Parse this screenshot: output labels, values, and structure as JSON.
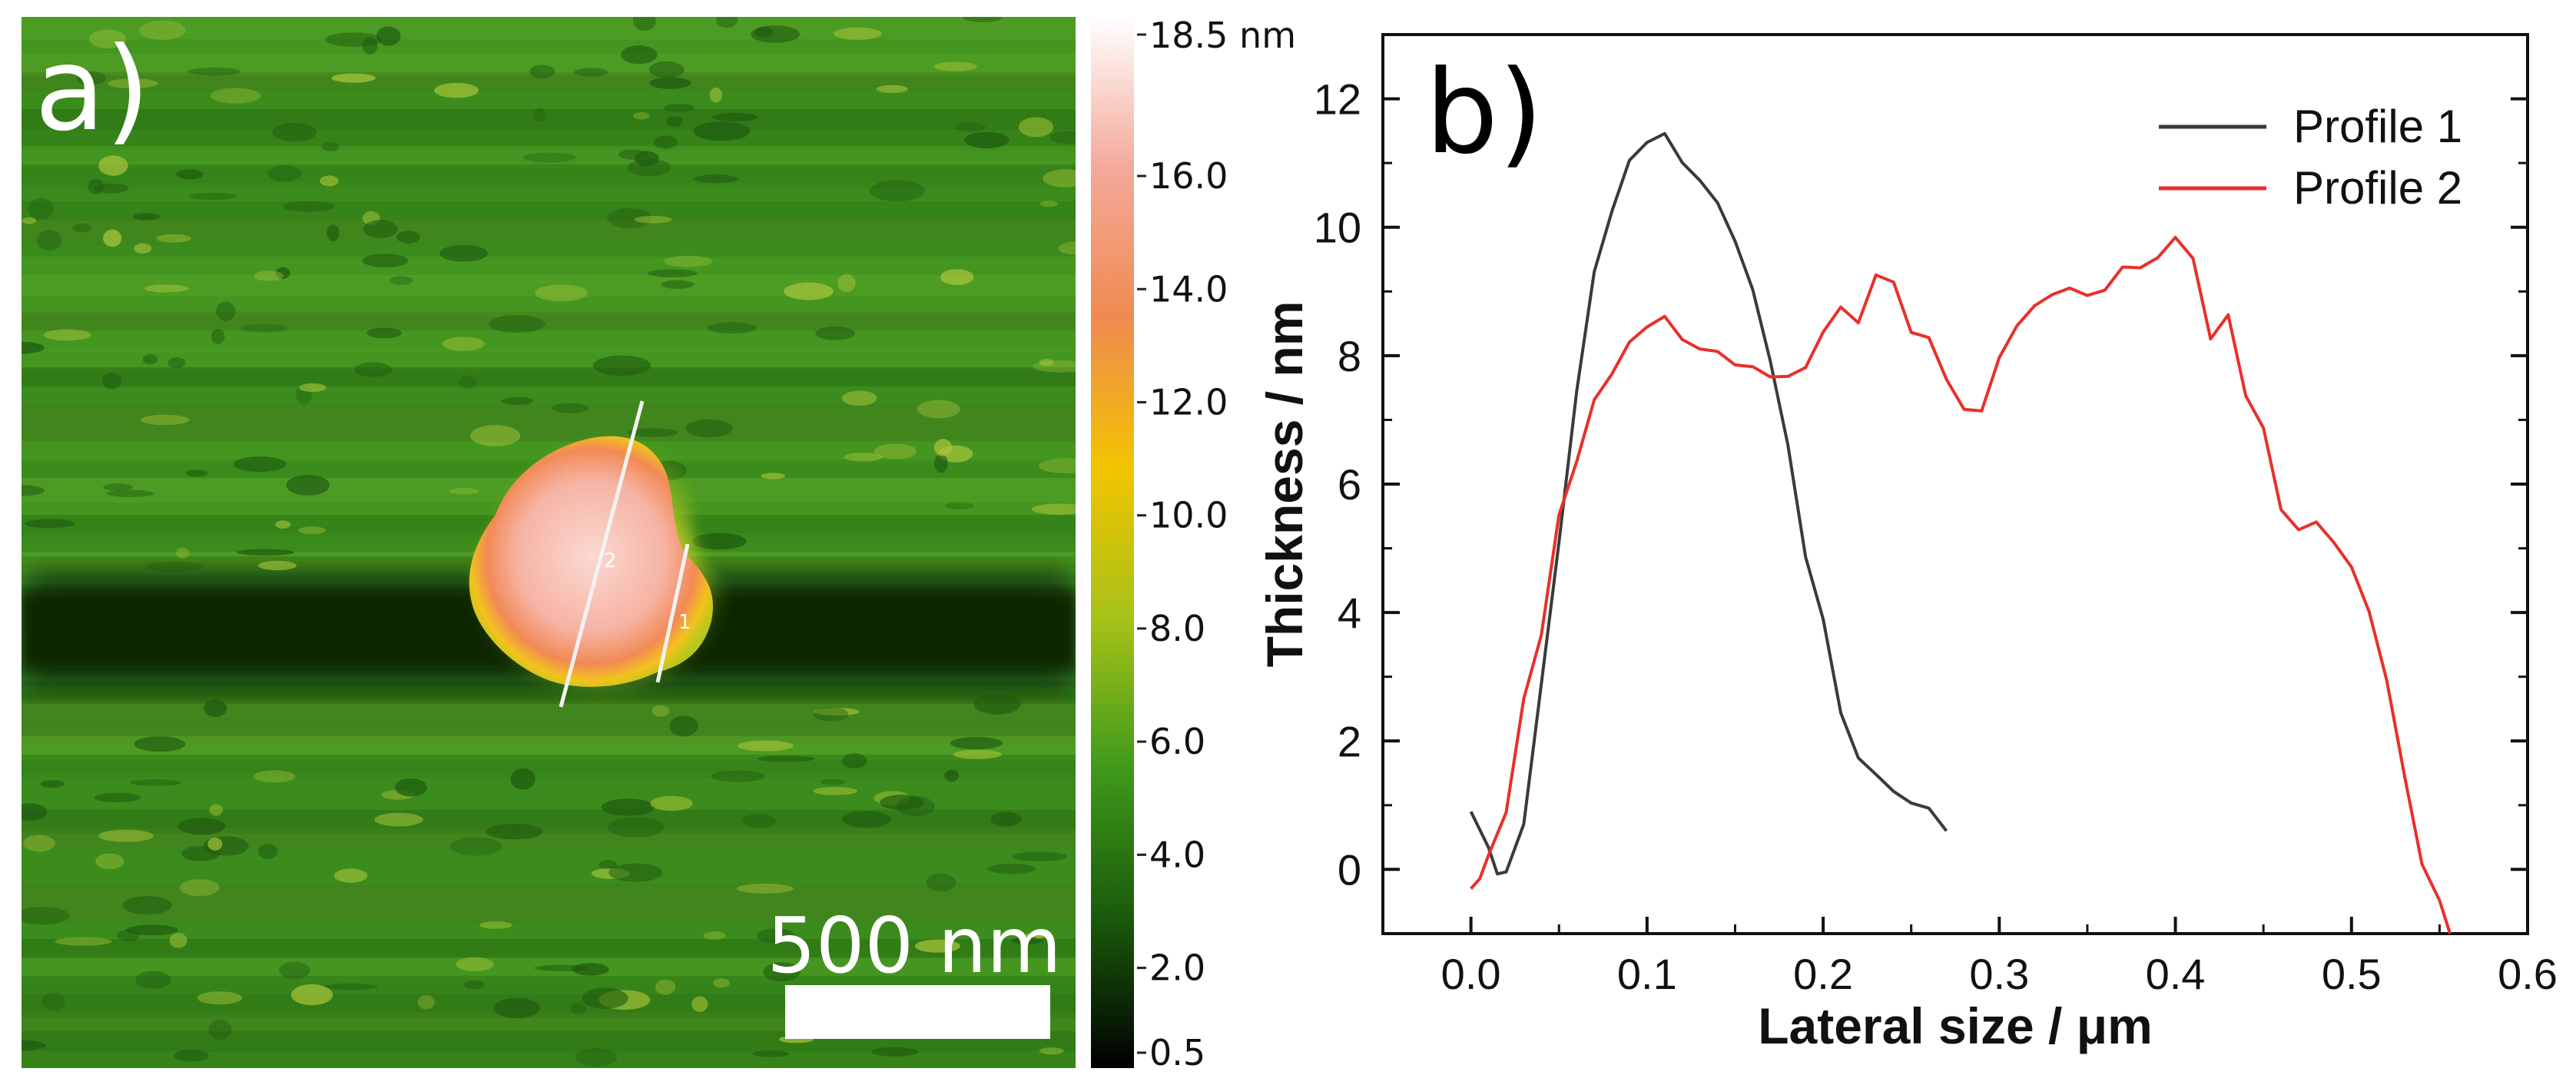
{
  "afm_panel": {
    "panel_label": "a)",
    "scale_bar_label": "500 nm",
    "profile_line_labels": [
      "2",
      "1"
    ],
    "colorbar": {
      "top_label": "18.5 nm",
      "ticks": [
        {
          "value": 16.0,
          "label": "16.0"
        },
        {
          "value": 14.0,
          "label": "14.0"
        },
        {
          "value": 12.0,
          "label": "12.0"
        },
        {
          "value": 10.0,
          "label": "10.0"
        },
        {
          "value": 8.0,
          "label": "8.0"
        },
        {
          "value": 6.0,
          "label": "6.0"
        },
        {
          "value": 4.0,
          "label": "4.0"
        },
        {
          "value": 2.0,
          "label": "2.0"
        },
        {
          "value": 0.5,
          "label": "0.5"
        }
      ],
      "range": [
        0.5,
        18.5
      ],
      "colors": [
        "#000000",
        "#1a5a0c",
        "#3f9a1a",
        "#a8c218",
        "#f2c400",
        "#f08a50",
        "#f4a99a",
        "#ffffff"
      ]
    }
  },
  "chart_data": {
    "type": "line",
    "panel_label": "b)",
    "xlabel": "Lateral size / μm",
    "ylabel": "Thickness / nm",
    "xlim": [
      -0.05,
      0.6
    ],
    "ylim": [
      -1,
      13
    ],
    "xticks": [
      0.0,
      0.1,
      0.2,
      0.3,
      0.4,
      0.5,
      0.6
    ],
    "xtick_labels": [
      "0.0",
      "0.1",
      "0.2",
      "0.3",
      "0.4",
      "0.5",
      "0.6"
    ],
    "yticks": [
      0,
      2,
      4,
      6,
      8,
      10,
      12
    ],
    "ytick_labels": [
      "0",
      "2",
      "4",
      "6",
      "8",
      "10",
      "12"
    ],
    "legend_position": "top-right",
    "grid": false,
    "series": [
      {
        "name": "Profile 1",
        "color": "#3a3a3a",
        "x": [
          0.0,
          0.01,
          0.015,
          0.02,
          0.03,
          0.04,
          0.05,
          0.06,
          0.07,
          0.08,
          0.09,
          0.1,
          0.11,
          0.12,
          0.13,
          0.14,
          0.15,
          0.16,
          0.17,
          0.18,
          0.19,
          0.2,
          0.21,
          0.22,
          0.23,
          0.24,
          0.25,
          0.26,
          0.27
        ],
        "y": [
          0.9,
          0.2,
          0.0,
          0.1,
          0.8,
          2.8,
          5.2,
          7.5,
          9.2,
          10.3,
          11.0,
          11.2,
          11.3,
          11.0,
          10.8,
          10.4,
          9.8,
          9.0,
          8.0,
          6.5,
          5.0,
          3.8,
          2.6,
          1.8,
          1.5,
          1.2,
          1.0,
          0.9,
          0.6
        ]
      },
      {
        "name": "Profile 2",
        "color": "#e8302a",
        "x": [
          0.0,
          0.005,
          0.01,
          0.02,
          0.03,
          0.04,
          0.05,
          0.06,
          0.07,
          0.08,
          0.09,
          0.1,
          0.11,
          0.12,
          0.13,
          0.14,
          0.15,
          0.16,
          0.17,
          0.18,
          0.19,
          0.2,
          0.21,
          0.22,
          0.23,
          0.24,
          0.25,
          0.26,
          0.27,
          0.28,
          0.29,
          0.3,
          0.31,
          0.32,
          0.33,
          0.34,
          0.35,
          0.36,
          0.37,
          0.38,
          0.39,
          0.4,
          0.41,
          0.42,
          0.43,
          0.44,
          0.45,
          0.46,
          0.47,
          0.48,
          0.49,
          0.5,
          0.51,
          0.52,
          0.53,
          0.54,
          0.55,
          0.556
        ],
        "y": [
          -0.3,
          0.0,
          0.3,
          1.0,
          2.5,
          3.8,
          5.4,
          6.3,
          7.2,
          7.8,
          8.2,
          8.3,
          8.5,
          8.4,
          8.0,
          7.9,
          7.8,
          7.7,
          7.8,
          7.6,
          7.8,
          8.3,
          8.7,
          8.6,
          9.4,
          9.0,
          8.4,
          8.2,
          7.5,
          7.2,
          7.3,
          7.8,
          8.4,
          8.8,
          8.9,
          9.0,
          9.0,
          9.1,
          9.3,
          9.5,
          9.6,
          9.9,
          9.6,
          8.4,
          8.5,
          7.5,
          7.0,
          5.5,
          5.4,
          5.3,
          5.1,
          4.6,
          4.0,
          3.0,
          1.5,
          0.0,
          -0.6,
          -1.0
        ]
      }
    ]
  }
}
